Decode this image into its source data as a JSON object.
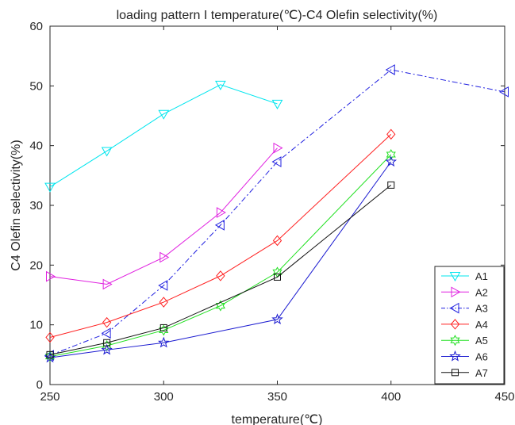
{
  "chart_data": {
    "type": "line",
    "title": "loading pattern I  temperature(℃)-C4 Olefin selectivity(%)",
    "xlabel": "temperature(℃)",
    "ylabel": "C4 Olefin selectivity(%)",
    "xlim": [
      250,
      450
    ],
    "ylim": [
      0,
      60
    ],
    "xticks": [
      250,
      300,
      350,
      400,
      450
    ],
    "yticks": [
      0,
      10,
      20,
      30,
      40,
      50,
      60
    ],
    "grid": false,
    "legend_position": "bottom-right",
    "series": [
      {
        "name": "A1",
        "color": "#00e5ee",
        "marker": "triangle-down",
        "dash": "solid",
        "x": [
          250,
          275,
          300,
          325,
          350
        ],
        "y": [
          33.1,
          39.1,
          45.3,
          50.2,
          47.0
        ]
      },
      {
        "name": "A2",
        "color": "#e020e0",
        "marker": "triangle-right",
        "dash": "solid",
        "x": [
          250,
          275,
          300,
          325,
          350
        ],
        "y": [
          18.1,
          16.8,
          21.3,
          28.8,
          39.6
        ]
      },
      {
        "name": "A3",
        "color": "#2020e0",
        "marker": "triangle-left",
        "dash": "dashdot",
        "x": [
          250,
          275,
          300,
          325,
          350,
          400,
          450
        ],
        "y": [
          4.9,
          8.6,
          16.6,
          26.7,
          37.3,
          52.7,
          49.0
        ]
      },
      {
        "name": "A4",
        "color": "#ff2020",
        "marker": "diamond",
        "dash": "solid",
        "x": [
          250,
          275,
          300,
          325,
          350,
          400
        ],
        "y": [
          7.9,
          10.4,
          13.8,
          18.2,
          24.1,
          41.9
        ]
      },
      {
        "name": "A5",
        "color": "#20e020",
        "marker": "hexagram",
        "dash": "solid",
        "x": [
          250,
          275,
          300,
          325,
          350,
          400
        ],
        "y": [
          4.7,
          6.5,
          9.1,
          13.2,
          18.8,
          38.5
        ]
      },
      {
        "name": "A6",
        "color": "#1a1ad0",
        "marker": "pentagram",
        "dash": "solid",
        "x": [
          250,
          275,
          300,
          350,
          400
        ],
        "y": [
          4.5,
          5.8,
          7.0,
          10.9,
          37.3
        ]
      },
      {
        "name": "A7",
        "color": "#111111",
        "marker": "square",
        "dash": "solid",
        "x": [
          250,
          275,
          300,
          350,
          400
        ],
        "y": [
          5.0,
          7.0,
          9.5,
          18.0,
          33.4
        ]
      }
    ]
  }
}
